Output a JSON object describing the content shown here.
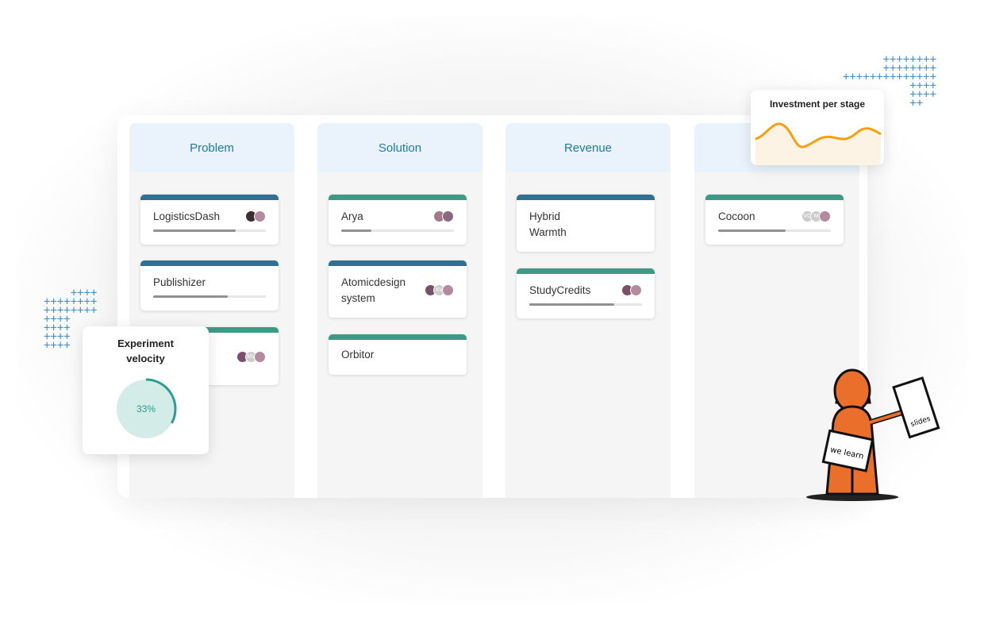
{
  "board": {
    "columns": [
      {
        "title": "Problem",
        "cards": [
          {
            "title": "LogisticsDash",
            "color": "#2e7192",
            "progress": 0.73,
            "avatars": [
              "photo",
              "photo"
            ]
          },
          {
            "title": "Publishizer",
            "color": "#2e7192",
            "progress": 0.66,
            "avatars": []
          },
          {
            "title": "",
            "color": "#3e9a85",
            "progress": null,
            "avatars": [
              "photo",
              "MV",
              "photo"
            ]
          }
        ]
      },
      {
        "title": "Solution",
        "cards": [
          {
            "title": "Arya",
            "color": "#3e9a85",
            "progress": 0.27,
            "avatars": [
              "photo",
              "photo"
            ]
          },
          {
            "title": "Atomicdesign system",
            "color": "#2e7192",
            "progress": null,
            "avatars": [
              "photo",
              "XV",
              "photo"
            ]
          },
          {
            "title": "Orbitor",
            "color": "#3e9a85",
            "progress": null,
            "avatars": []
          }
        ]
      },
      {
        "title": "Revenue",
        "cards": [
          {
            "title": "Hybrid Warmth",
            "color": "#2e7192",
            "progress": null,
            "avatars": []
          },
          {
            "title": "StudyCredits",
            "color": "#3e9a85",
            "progress": 0.75,
            "avatars": [
              "photo",
              "photo"
            ]
          }
        ]
      },
      {
        "title": "",
        "cards": [
          {
            "title": "Cocoon",
            "color": "#3e9a85",
            "progress": 0.6,
            "avatars": [
              "VO",
              "M",
              "photo"
            ]
          }
        ]
      }
    ]
  },
  "experiment": {
    "title": "Experiment velocity",
    "value": "33%",
    "fraction": 0.33,
    "color": "#2a9d8f"
  },
  "investment": {
    "title": "Investment per stage",
    "color": "#f5a10f"
  },
  "illustration": {
    "sign": "we learn",
    "paper": "slides"
  }
}
